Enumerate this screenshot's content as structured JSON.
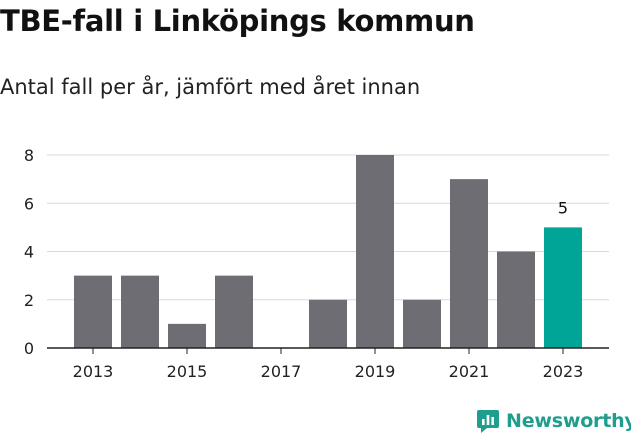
{
  "title": "TBE-fall i Linköpings kommun",
  "subtitle": "Antal fall per år, jämfört med året innan",
  "brand": "Newsworthy",
  "colors": {
    "bar": "#6e6d73",
    "highlight": "#00a597",
    "grid": "#d9d9d9",
    "axis": "#222222",
    "brand": "#1f9e8e"
  },
  "chart_data": {
    "type": "bar",
    "categories": [
      "2013",
      "2014",
      "2015",
      "2016",
      "2017",
      "2018",
      "2019",
      "2020",
      "2021",
      "2022",
      "2023"
    ],
    "values": [
      3,
      3,
      1,
      3,
      0,
      2,
      8,
      2,
      7,
      4,
      5
    ],
    "highlight_index": 10,
    "data_labels": [
      {
        "index": 10,
        "text": "5"
      }
    ],
    "x_tick_labels": [
      "2013",
      "2015",
      "2017",
      "2019",
      "2021",
      "2023"
    ],
    "y_ticks": [
      0,
      2,
      4,
      6,
      8
    ],
    "ylim": [
      0,
      8
    ],
    "grid": true,
    "legend": "none"
  }
}
